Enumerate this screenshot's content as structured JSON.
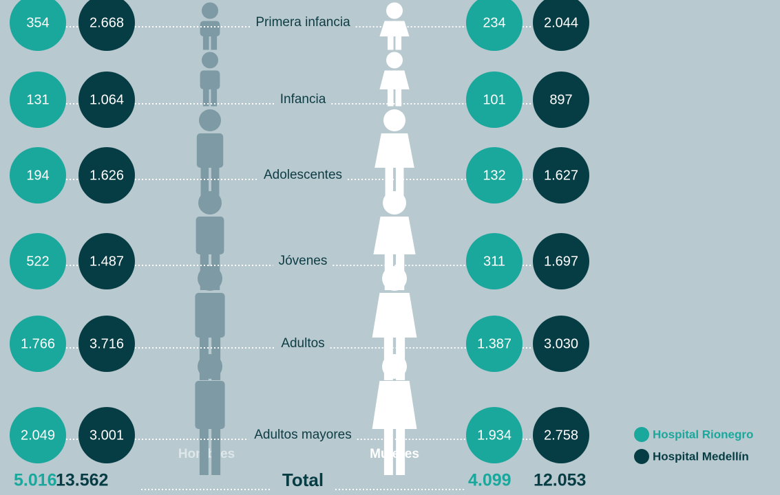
{
  "rows": [
    {
      "label": "Primera infancia",
      "hombres": {
        "rionegro": "354",
        "medellin": "2.668"
      },
      "mujeres": {
        "rionegro": "234",
        "medellin": "2.044"
      }
    },
    {
      "label": "Infancia",
      "hombres": {
        "rionegro": "131",
        "medellin": "1.064"
      },
      "mujeres": {
        "rionegro": "101",
        "medellin": "897"
      }
    },
    {
      "label": "Adolescentes",
      "hombres": {
        "rionegro": "194",
        "medellin": "1.626"
      },
      "mujeres": {
        "rionegro": "132",
        "medellin": "1.627"
      }
    },
    {
      "label": "Jóvenes",
      "hombres": {
        "rionegro": "522",
        "medellin": "1.487"
      },
      "mujeres": {
        "rionegro": "311",
        "medellin": "1.697"
      }
    },
    {
      "label": "Adultos",
      "hombres": {
        "rionegro": "1.766",
        "medellin": "3.716"
      },
      "mujeres": {
        "rionegro": "1.387",
        "medellin": "3.030"
      }
    },
    {
      "label": "Adultos mayores",
      "hombres": {
        "rionegro": "2.049",
        "medellin": "3.001"
      },
      "mujeres": {
        "rionegro": "1.934",
        "medellin": "2.758"
      }
    }
  ],
  "groups": {
    "hombres": "Hombres",
    "mujeres": "Mujeres"
  },
  "total": {
    "label": "Total",
    "hombres": {
      "rionegro": "5.016",
      "medellin": "13.562"
    },
    "mujeres": {
      "rionegro": "4.099",
      "medellin": "12.053"
    }
  },
  "legend": {
    "rionegro": "Hospital Rionegro",
    "medellin": "Hospital Medellín"
  }
}
